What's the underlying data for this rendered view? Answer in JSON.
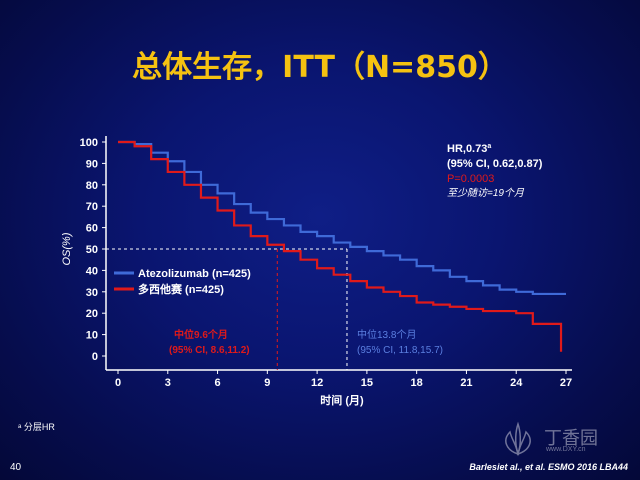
{
  "title": "总体生存，ITT（N=850）",
  "stats": {
    "hr": "HR,0.73",
    "hr_sup": "a",
    "ci": "(95% CI, 0.62,0.87)",
    "p": "P=0.0003",
    "followup": "至少随访=19个月"
  },
  "median_labels": {
    "docetaxel_line1": "中位9.6个月",
    "docetaxel_line2": "(95% CI, 8.6,11.2)",
    "atezo_line1": "中位13.8个月",
    "atezo_line2": "(95% CI, 11.8,15.7)"
  },
  "footnote": "ᵃ 分层HR",
  "page_number": "40",
  "citation": "Barlesiet al., et al.  ESMO  2016 LBA44",
  "watermark": {
    "text": "丁香园",
    "sub": "www.DXY.cn"
  },
  "colors": {
    "atezolizumab": "#3f6ad8",
    "docetaxel": "#e01a1a",
    "title": "#f5c211",
    "p_value": "#e01a1a"
  },
  "chart_data": {
    "type": "line",
    "xlabel": "时间 (月)",
    "ylabel": "OS(%)",
    "xlim": [
      0,
      27
    ],
    "ylim": [
      0,
      100
    ],
    "x_ticks": [
      0,
      3,
      6,
      9,
      12,
      15,
      18,
      21,
      24,
      27
    ],
    "y_ticks": [
      0,
      10,
      20,
      30,
      40,
      50,
      60,
      70,
      80,
      90,
      100
    ],
    "grid": false,
    "legend_position": "left-middle",
    "median_reference_y": 50,
    "series": [
      {
        "name": "Atezolizumab (n=425)",
        "median_x": 13.8,
        "points": [
          [
            0,
            100
          ],
          [
            1,
            99
          ],
          [
            2,
            95
          ],
          [
            3,
            91
          ],
          [
            4,
            86
          ],
          [
            5,
            80
          ],
          [
            6,
            76
          ],
          [
            7,
            71
          ],
          [
            8,
            67
          ],
          [
            9,
            64
          ],
          [
            10,
            61
          ],
          [
            11,
            58
          ],
          [
            12,
            56
          ],
          [
            13,
            53
          ],
          [
            14,
            51
          ],
          [
            15,
            49
          ],
          [
            16,
            47
          ],
          [
            17,
            45
          ],
          [
            18,
            42
          ],
          [
            19,
            40
          ],
          [
            20,
            37
          ],
          [
            21,
            35
          ],
          [
            22,
            33
          ],
          [
            23,
            31
          ],
          [
            24,
            30
          ],
          [
            25,
            29
          ],
          [
            26,
            29
          ],
          [
            27,
            29
          ]
        ]
      },
      {
        "name": "多西他赛 (n=425)",
        "median_x": 9.6,
        "points": [
          [
            0,
            100
          ],
          [
            1,
            98
          ],
          [
            2,
            92
          ],
          [
            3,
            86
          ],
          [
            4,
            80
          ],
          [
            5,
            74
          ],
          [
            6,
            68
          ],
          [
            7,
            61
          ],
          [
            8,
            56
          ],
          [
            9,
            52
          ],
          [
            10,
            49
          ],
          [
            11,
            45
          ],
          [
            12,
            41
          ],
          [
            13,
            38
          ],
          [
            14,
            35
          ],
          [
            15,
            32
          ],
          [
            16,
            30
          ],
          [
            17,
            28
          ],
          [
            18,
            25
          ],
          [
            19,
            24
          ],
          [
            20,
            23
          ],
          [
            21,
            22
          ],
          [
            22,
            21
          ],
          [
            23,
            21
          ],
          [
            24,
            20
          ],
          [
            25,
            15
          ],
          [
            26,
            15
          ],
          [
            26.7,
            15
          ],
          [
            26.7,
            2
          ]
        ]
      }
    ]
  }
}
